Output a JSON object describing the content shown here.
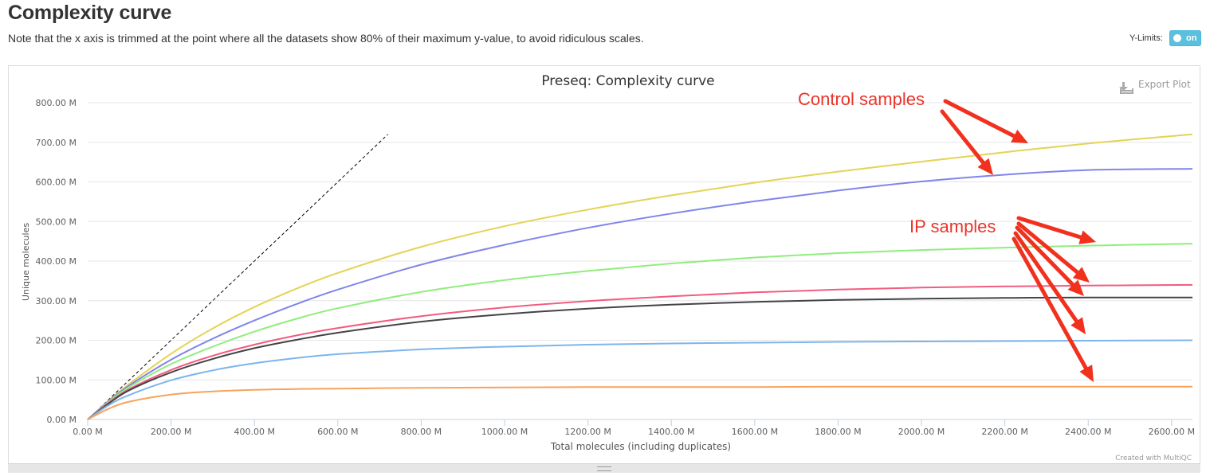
{
  "header": {
    "title": "Complexity curve",
    "note": "Note that the x axis is trimmed at the point where all the datasets show 80% of their maximum y-value, to avoid ridiculous scales.",
    "ylimits_label": "Y-Limits:",
    "toggle_label": "on"
  },
  "export_label": "Export Plot",
  "credit": "Created with MultiQC",
  "colors": {
    "arrow": "#f1301e",
    "annotation_text": "#e8352b",
    "toggle": "#5bc0de"
  },
  "annotations": {
    "control": "Control samples",
    "ip": "IP samples"
  },
  "chart_data": {
    "type": "line",
    "title": "Preseq: Complexity curve",
    "xlabel": "Total molecules (including duplicates)",
    "ylabel": "Unique molecules",
    "xlim": [
      0,
      2650
    ],
    "ylim": [
      0,
      800
    ],
    "grid": true,
    "x_ticks": [
      0,
      200,
      400,
      600,
      800,
      1000,
      1200,
      1400,
      1600,
      1800,
      2000,
      2200,
      2400,
      2600
    ],
    "x_tick_labels": [
      "0.00 M",
      "200.00 M",
      "400.00 M",
      "600.00 M",
      "800.00 M",
      "1000.00 M",
      "1200.00 M",
      "1400.00 M",
      "1600.00 M",
      "1800.00 M",
      "2000.00 M",
      "2200.00 M",
      "2400.00 M",
      "2600.00 M"
    ],
    "y_ticks": [
      0,
      100,
      200,
      300,
      400,
      500,
      600,
      700,
      800
    ],
    "y_tick_labels": [
      "0.00 M",
      "100.00 M",
      "200.00 M",
      "300.00 M",
      "400.00 M",
      "500.00 M",
      "600.00 M",
      "700.00 M",
      "800.00 M"
    ],
    "x": [
      0,
      50,
      100,
      200,
      300,
      400,
      500,
      600,
      800,
      1000,
      1200,
      1400,
      1600,
      1800,
      2000,
      2200,
      2400,
      2650
    ],
    "series": [
      {
        "color": "#e4d354",
        "values": [
          0,
          47,
          90,
          166,
          230,
          284,
          330,
          370,
          436,
          488,
          530,
          566,
          598,
          626,
          651,
          675,
          697,
          720
        ]
      },
      {
        "color": "#8085e9",
        "values": [
          0,
          46,
          86,
          151,
          204,
          250,
          291,
          328,
          391,
          441,
          484,
          520,
          551,
          578,
          601,
          618,
          630,
          633
        ]
      },
      {
        "color": "#90ed7d",
        "values": [
          0,
          44,
          82,
          140,
          184,
          222,
          254,
          281,
          322,
          352,
          375,
          394,
          409,
          420,
          428,
          434,
          439,
          444
        ]
      },
      {
        "color": "#f15c80",
        "values": [
          0,
          42,
          77,
          125,
          161,
          189,
          212,
          231,
          261,
          283,
          299,
          311,
          321,
          328,
          333,
          336,
          338,
          340
        ]
      },
      {
        "color": "#434348",
        "values": [
          0,
          40,
          74,
          119,
          153,
          180,
          201,
          219,
          247,
          266,
          280,
          290,
          297,
          302,
          305,
          307,
          308,
          308
        ]
      },
      {
        "color": "#7cb5ec",
        "values": [
          0,
          36,
          62,
          99,
          124,
          142,
          155,
          165,
          177,
          184,
          189,
          192,
          194,
          196,
          197,
          198,
          199,
          200
        ]
      },
      {
        "color": "#f7a35c",
        "values": [
          0,
          27,
          45,
          63,
          71,
          75,
          77,
          78,
          80,
          81,
          82,
          82,
          82,
          83,
          83,
          83,
          83,
          83
        ]
      }
    ],
    "reference_line": {
      "x": [
        0,
        720
      ],
      "y": [
        0,
        720
      ]
    }
  }
}
